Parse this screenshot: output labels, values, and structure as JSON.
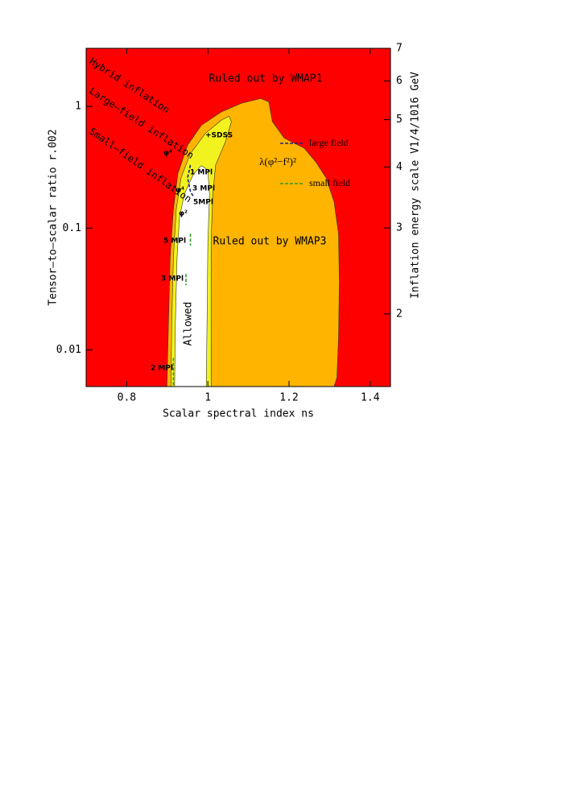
{
  "chart_data": {
    "type": "area",
    "x_label": "Scalar spectral index ns",
    "y_label": "Tensor–to–scalar ratio r.002",
    "y2_label": "Inflation energy scale V1/4/1016 GeV",
    "background": "#ff0000",
    "xlim": [
      0.7,
      1.45
    ],
    "xticks": [
      0.8,
      1,
      1.2,
      1.4
    ],
    "ylim": [
      0.005,
      3
    ],
    "ylog": true,
    "yticks": [
      0.01,
      0.1,
      1
    ],
    "y2lim": [
      1.42,
      7
    ],
    "y2log": true,
    "y2ticks": [
      2,
      3,
      4,
      5,
      6,
      7
    ],
    "series": [
      {
        "name": "Ruled out by WMAP3",
        "style": "fill",
        "color": "#ffb400",
        "x": [
          0.899,
          0.903,
          0.907,
          0.915,
          0.926,
          0.95,
          0.984,
          1.033,
          1.082,
          1.13,
          1.15,
          1.159,
          1.188,
          1.237,
          1.266,
          1.291,
          1.311,
          1.322,
          1.324,
          1.322,
          1.318,
          1.311
        ],
        "values": [
          0.005,
          0.017,
          0.057,
          0.142,
          0.28,
          0.48,
          0.7,
          0.9,
          1.06,
          1.16,
          1.09,
          0.75,
          0.55,
          0.455,
          0.35,
          0.26,
          0.165,
          0.09,
          0.036,
          0.0126,
          0.0059,
          0.005
        ]
      },
      {
        "style": "fill",
        "color": "#f2f21e",
        "x": [
          0.909,
          0.911,
          0.915,
          0.922,
          0.934,
          0.957,
          0.994,
          1.033,
          1.052,
          1.058,
          1.043,
          1.019,
          1.012,
          1.008,
          1.008,
          1.008
        ],
        "values": [
          0.005,
          0.017,
          0.057,
          0.142,
          0.26,
          0.41,
          0.6,
          0.77,
          0.83,
          0.75,
          0.51,
          0.33,
          0.19,
          0.077,
          0.017,
          0.005
        ]
      },
      {
        "name": "Allowed",
        "style": "fill",
        "color": "#ffffff",
        "x": [
          0.918,
          0.92,
          0.924,
          0.93,
          0.942,
          0.965,
          0.984,
          1.0,
          1.004,
          1.0,
          0.998,
          0.996
        ],
        "values": [
          0.005,
          0.017,
          0.057,
          0.122,
          0.19,
          0.28,
          0.326,
          0.3,
          0.19,
          0.077,
          0.017,
          0.005
        ]
      },
      {
        "name": "large field",
        "style": "dashed",
        "color": "#1a237e",
        "x": [
          0.957,
          0.95,
          0.957,
          0.965
        ],
        "values": [
          0.33,
          0.26,
          0.2,
          0.18
        ]
      },
      {
        "name": "small field",
        "style": "dashed",
        "color": "#2e9a2e",
        "x": [
          0.957,
          0.957,
          null,
          0.946,
          0.946,
          null,
          0.915,
          0.915
        ],
        "values": [
          0.09,
          0.072,
          null,
          0.042,
          0.034,
          null,
          0.0086,
          0.005
        ]
      }
    ],
    "annotations": [
      "Ruled out by WMAP1",
      "Ruled out by WMAP3",
      "Allowed",
      "λ(φ²−f²)²",
      "Hybrid inflation",
      "Large–field inflation",
      "Small–field inflation",
      "1 MPl",
      "3 MPl",
      "5MPl",
      "5 MPl",
      "3 MPl",
      "2 MPl",
      "φ²",
      "φ⁴",
      "φ⁶",
      "+SDSS"
    ]
  }
}
